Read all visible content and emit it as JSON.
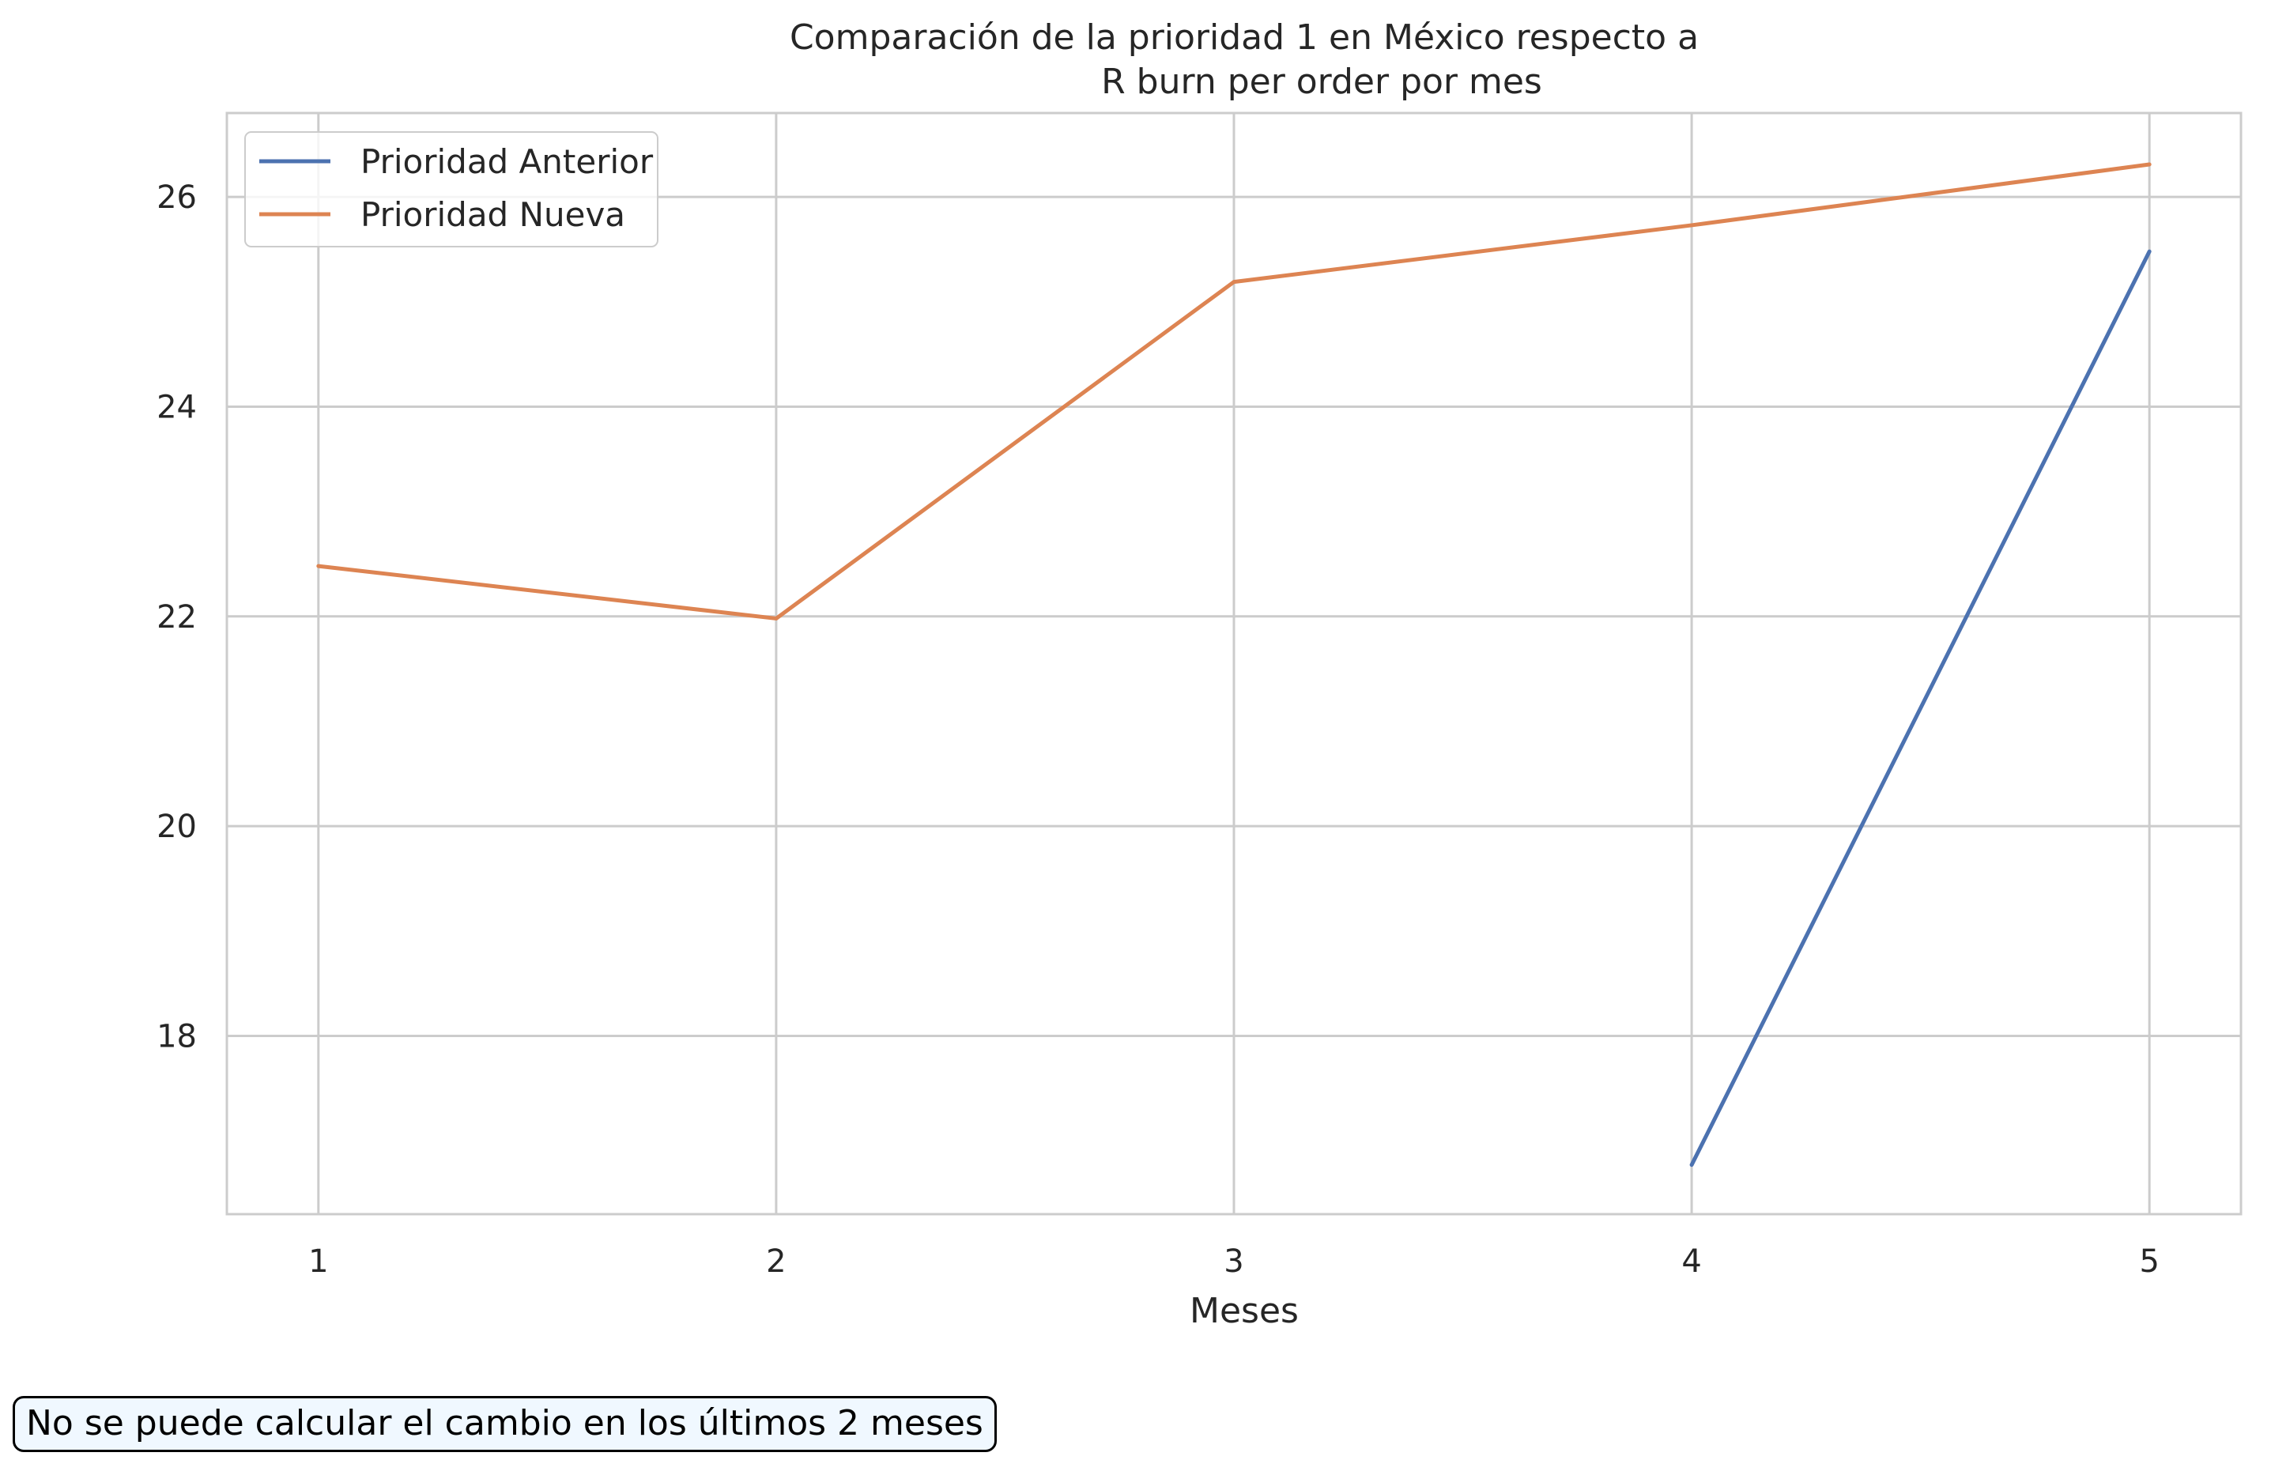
{
  "chart_data": {
    "type": "line",
    "title_line1": "Comparación de la prioridad 1 en México respecto a",
    "title_line2": "R burn per order por mes",
    "xlabel": "Meses",
    "ylabel": "",
    "x": [
      1,
      2,
      3,
      4,
      5
    ],
    "xlim": [
      0.8,
      5.2
    ],
    "ylim": [
      16.3,
      26.8
    ],
    "yticks": [
      18,
      20,
      22,
      24,
      26
    ],
    "grid": true,
    "legend_position": "top-left",
    "series": [
      {
        "name": "Prioridad Anterior",
        "color": "#4c72b0",
        "values": [
          null,
          null,
          null,
          16.77,
          25.48
        ]
      },
      {
        "name": "Prioridad Nueva",
        "color": "#dd8452",
        "values": [
          22.48,
          21.98,
          25.19,
          25.73,
          26.31
        ]
      }
    ]
  },
  "note": "No se puede calcular el cambio en los últimos 2 meses"
}
